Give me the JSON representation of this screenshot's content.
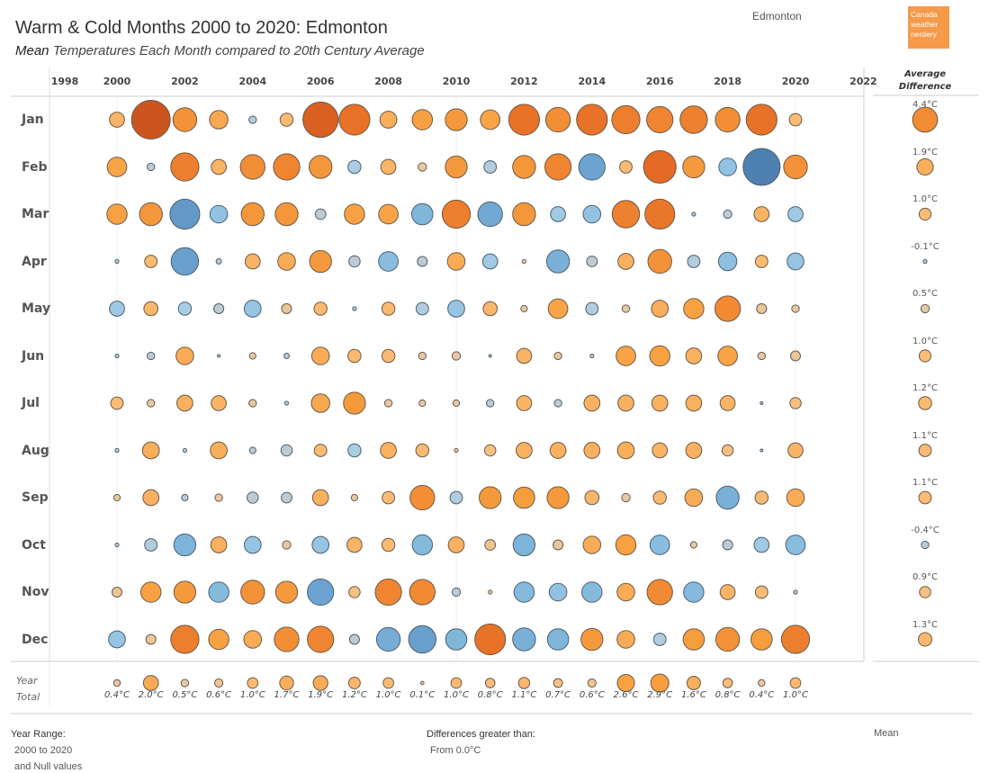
{
  "header": {
    "title": "Warm & Cold Months 2000 to 2020: Edmonton",
    "subtitle_measure": "Mean",
    "subtitle_rest": " Temperatures Each Month compared to 20th Century Average",
    "city": "Edmonton",
    "logo_text": [
      "Canada",
      "weather",
      "nerdery"
    ]
  },
  "colors": {
    "warm": "#f08a2c",
    "cold": "#6fa6d2",
    "neutral": "#c5cdd2",
    "logo": "#f59a4a"
  },
  "chart_data": {
    "type": "scatter",
    "encoding": "bubble size = magnitude of difference, orange = warmer, blue = colder",
    "x_axis_ticks": [
      "1998",
      "2000",
      "2002",
      "2004",
      "2006",
      "2008",
      "2010",
      "2012",
      "2014",
      "2016",
      "2018",
      "2020",
      "2022"
    ],
    "xlim": [
      1998,
      2022
    ],
    "years": [
      2000,
      2001,
      2002,
      2003,
      2004,
      2005,
      2006,
      2007,
      2008,
      2009,
      2010,
      2011,
      2012,
      2013,
      2014,
      2015,
      2016,
      2017,
      2018,
      2019,
      2020
    ],
    "months": [
      "Jan",
      "Feb",
      "Mar",
      "Apr",
      "May",
      "Jun",
      "Jul",
      "Aug",
      "Sep",
      "Oct",
      "Nov",
      "Dec"
    ],
    "values": [
      [
        1.6,
        10.6,
        4.0,
        2.4,
        -0.4,
        1.2,
        8.8,
        6.7,
        2.0,
        2.9,
        3.4,
        2.7,
        6.7,
        4.3,
        6.7,
        5.6,
        4.9,
        5.3,
        4.3,
        6.7,
        1.1
      ],
      [
        2.7,
        -0.4,
        5.6,
        1.6,
        4.3,
        4.9,
        3.7,
        -1.2,
        1.6,
        0.5,
        3.4,
        -1.1,
        3.7,
        4.9,
        -4.9,
        1.1,
        7.5,
        3.4,
        -2.2,
        -9.7,
        4.0
      ],
      [
        2.9,
        3.7,
        -6.3,
        -2.2,
        3.7,
        3.7,
        -0.8,
        2.9,
        2.7,
        -3.2,
        5.6,
        -4.3,
        3.7,
        -1.6,
        -2.2,
        5.3,
        6.3,
        -0.1,
        -0.5,
        1.6,
        -1.6
      ],
      [
        -0.1,
        1.1,
        -5.3,
        -0.2,
        1.6,
        2.2,
        3.4,
        -0.9,
        -2.7,
        -0.7,
        2.2,
        -1.6,
        0.1,
        -3.7,
        -0.8,
        1.8,
        4.0,
        -1.1,
        -2.4,
        1.1,
        -2.0
      ],
      [
        -1.6,
        1.4,
        -1.2,
        -0.7,
        -2.0,
        0.7,
        1.2,
        -0.1,
        1.2,
        -1.1,
        -2.0,
        1.4,
        0.3,
        2.7,
        -1.1,
        0.4,
        2.0,
        2.9,
        4.6,
        0.7,
        0.4
      ],
      [
        -0.1,
        -0.4,
        2.2,
        -0.02,
        0.3,
        -0.2,
        2.2,
        1.2,
        1.2,
        0.4,
        0.5,
        -0.02,
        1.6,
        0.4,
        -0.1,
        2.7,
        2.9,
        1.8,
        2.7,
        0.4,
        0.7
      ],
      [
        1.1,
        0.4,
        1.8,
        1.6,
        0.4,
        -0.1,
        2.4,
        3.4,
        0.4,
        0.3,
        0.3,
        -0.4,
        1.6,
        -0.4,
        1.8,
        1.8,
        1.8,
        1.8,
        1.6,
        -0.02,
        0.9
      ],
      [
        -0.1,
        2.0,
        -0.1,
        2.0,
        -0.3,
        -0.9,
        1.1,
        -1.2,
        1.8,
        1.2,
        0.1,
        0.9,
        1.8,
        1.8,
        1.8,
        2.0,
        1.6,
        1.8,
        0.9,
        -0.02,
        1.6
      ],
      [
        0.3,
        1.8,
        -0.3,
        0.4,
        -0.9,
        -0.8,
        1.8,
        0.3,
        1.1,
        4.3,
        -1.1,
        3.4,
        3.2,
        3.4,
        1.4,
        0.5,
        1.2,
        2.2,
        -3.7,
        1.2,
        2.2
      ],
      [
        -0.1,
        -1.1,
        -3.4,
        1.8,
        -2.0,
        0.5,
        -2.0,
        1.6,
        1.2,
        -2.9,
        1.8,
        0.8,
        -3.4,
        0.7,
        2.2,
        2.9,
        -2.7,
        0.3,
        -0.7,
        -1.6,
        -2.7
      ],
      [
        0.7,
        2.9,
        3.4,
        -2.9,
        4.0,
        3.4,
        -4.9,
        0.9,
        4.9,
        4.6,
        -0.5,
        0.1,
        -2.9,
        -2.2,
        -2.9,
        2.2,
        4.6,
        -2.9,
        1.6,
        1.1,
        -0.1
      ],
      [
        -2.0,
        0.7,
        5.6,
        2.9,
        2.2,
        4.3,
        4.9,
        -0.7,
        -4.0,
        -5.3,
        -3.2,
        6.7,
        -3.7,
        -3.2,
        3.4,
        2.2,
        -1.1,
        3.2,
        4.0,
        3.2,
        5.6
      ]
    ],
    "year_total_header": [
      "Year",
      "Total"
    ],
    "year_totals": [
      0.4,
      2.0,
      0.5,
      0.6,
      1.0,
      1.7,
      1.9,
      1.2,
      1.0,
      0.1,
      1.0,
      0.8,
      1.1,
      0.7,
      0.6,
      2.6,
      2.9,
      1.6,
      0.8,
      0.4,
      1.0
    ],
    "year_total_labels": [
      "0.4°C",
      "2.0°C",
      "0.5°C",
      "0.6°C",
      "1.0°C",
      "1.7°C",
      "1.9°C",
      "1.2°C",
      "1.0°C",
      "0.1°C",
      "1.0°C",
      "0.8°C",
      "1.1°C",
      "0.7°C",
      "0.6°C",
      "2.6°C",
      "2.9°C",
      "1.6°C",
      "0.8°C",
      "0.4°C",
      "1.0°C"
    ],
    "avg_difference_header": [
      "Average",
      "Difference"
    ],
    "avg_difference": [
      4.4,
      1.9,
      1.0,
      -0.1,
      0.5,
      1.0,
      1.2,
      1.1,
      1.1,
      -0.4,
      0.9,
      1.3
    ],
    "avg_difference_labels": [
      "4.4°C",
      "1.9°C",
      "1.0°C",
      "-0.1°C",
      "0.5°C",
      "1.0°C",
      "1.2°C",
      "1.1°C",
      "1.1°C",
      "-0.4°C",
      "0.9°C",
      "1.3°C"
    ],
    "grid": true
  },
  "filters": {
    "year_range_label": "Year Range:",
    "year_range_value": "2000 to 2020",
    "year_range_null": "and Null values",
    "diff_label": "Differences greater than:",
    "diff_value": "From 0.0°C",
    "measure": "Mean"
  }
}
